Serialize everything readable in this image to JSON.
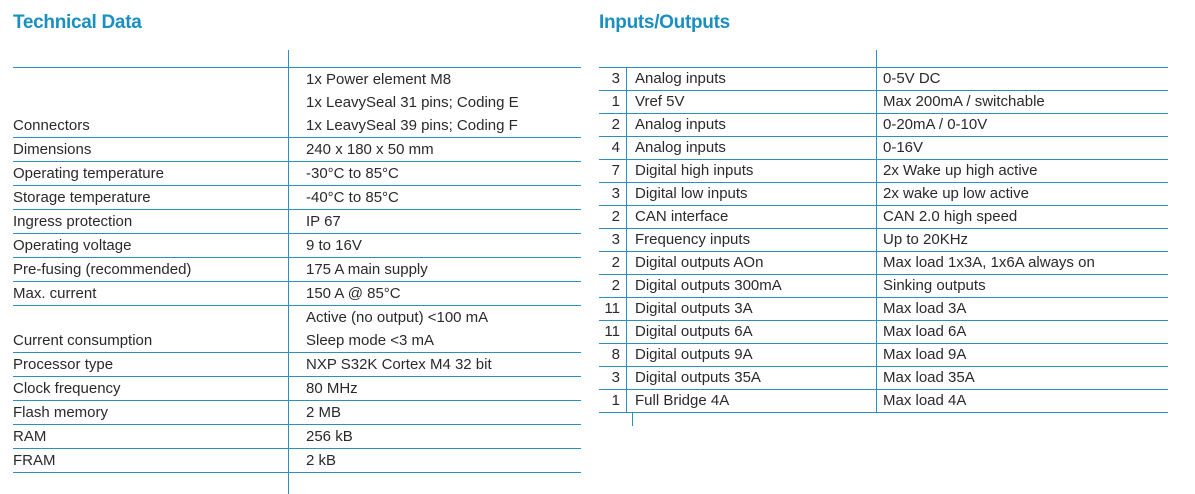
{
  "technical_data": {
    "title": "Technical Data",
    "rows": [
      {
        "label": "Connectors",
        "values": [
          "1x Power element M8",
          "1x LeavySeal 31 pins; Coding E",
          "1x LeavySeal 39 pins; Coding F"
        ]
      },
      {
        "label": "Dimensions",
        "values": [
          "240 x 180 x 50 mm"
        ]
      },
      {
        "label": "Operating temperature",
        "values": [
          "-30°C to 85°C"
        ]
      },
      {
        "label": "Storage temperature",
        "values": [
          "-40°C to 85°C"
        ]
      },
      {
        "label": "Ingress protection",
        "values": [
          "IP 67"
        ]
      },
      {
        "label": "Operating voltage",
        "values": [
          "9 to 16V"
        ]
      },
      {
        "label": "Pre-fusing (recommended)",
        "values": [
          "175 A main supply"
        ]
      },
      {
        "label": "Max. current",
        "values": [
          "150 A @ 85°C"
        ]
      },
      {
        "label": "Current consumption",
        "values": [
          "Active (no output) <100 mA",
          "Sleep mode <3 mA"
        ]
      },
      {
        "label": "Processor type",
        "values": [
          "NXP S32K  Cortex M4 32 bit"
        ]
      },
      {
        "label": "Clock frequency",
        "values": [
          "80 MHz"
        ]
      },
      {
        "label": "Flash memory",
        "values": [
          "2 MB"
        ]
      },
      {
        "label": "RAM",
        "values": [
          "256 kB"
        ]
      },
      {
        "label": "FRAM",
        "values": [
          "2 kB"
        ]
      }
    ]
  },
  "inputs_outputs": {
    "title": "Inputs/Outputs",
    "rows": [
      {
        "qty": "3",
        "name": "Analog inputs",
        "value": "0-5V DC"
      },
      {
        "qty": "1",
        "name": "Vref 5V",
        "value": "Max 200mA / switchable"
      },
      {
        "qty": "2",
        "name": "Analog inputs",
        "value": "0-20mA / 0-10V"
      },
      {
        "qty": "4",
        "name": "Analog inputs",
        "value": "0-16V"
      },
      {
        "qty": "7",
        "name": "Digital high inputs",
        "value": "2x Wake up high active"
      },
      {
        "qty": "3",
        "name": "Digital low inputs",
        "value": "2x wake up low active"
      },
      {
        "qty": "2",
        "name": "CAN interface",
        "value": "CAN 2.0 high speed"
      },
      {
        "qty": "3",
        "name": "Frequency inputs",
        "value": "Up to 20KHz"
      },
      {
        "qty": "2",
        "name": "Digital outputs AOn",
        "value": "Max load 1x3A, 1x6A always on"
      },
      {
        "qty": "2",
        "name": "Digital outputs 300mA",
        "value": "Sinking outputs"
      },
      {
        "qty": "11",
        "name": "Digital outputs 3A",
        "value": "Max load 3A"
      },
      {
        "qty": "11",
        "name": "Digital outputs 6A",
        "value": "Max load 6A"
      },
      {
        "qty": "8",
        "name": "Digital outputs 9A",
        "value": "Max load 9A"
      },
      {
        "qty": "3",
        "name": "Digital outputs 35A",
        "value": "Max load 35A"
      },
      {
        "qty": "1",
        "name": "Full Bridge 4A",
        "value": "Max load 4A"
      }
    ]
  },
  "colors": {
    "accent": "#1a8fc0",
    "rule": "#2b8fc3",
    "text": "#2a2a2a"
  }
}
